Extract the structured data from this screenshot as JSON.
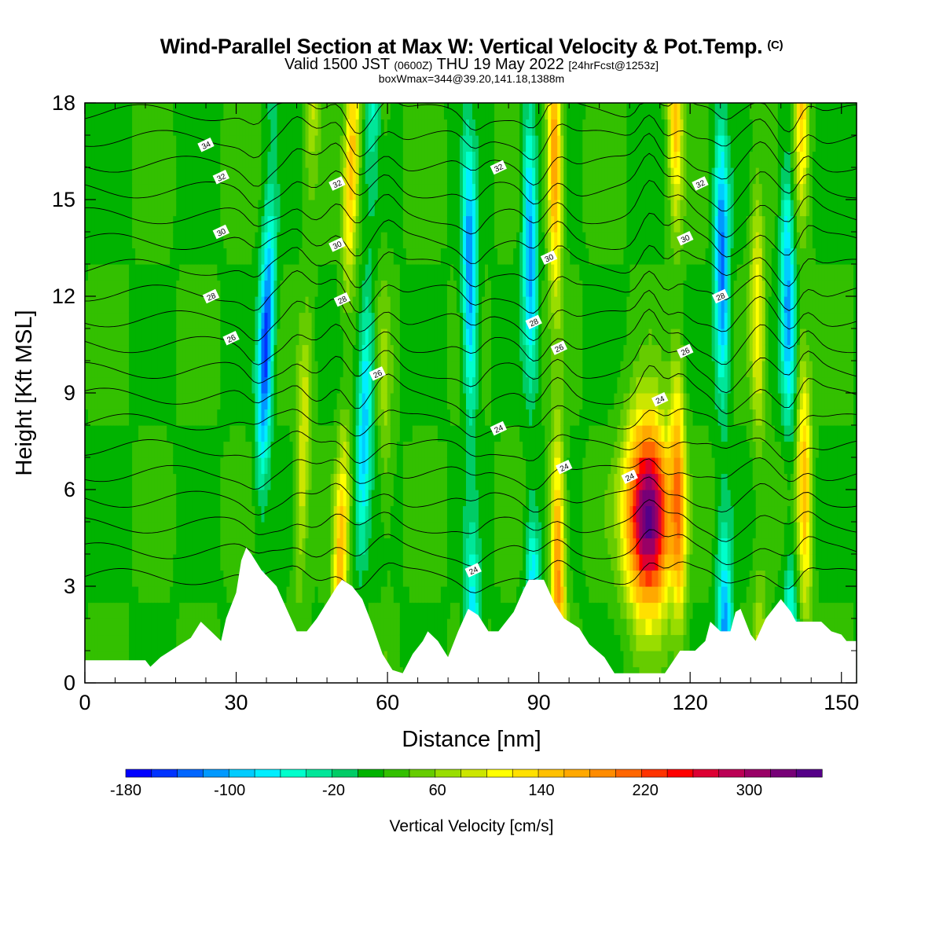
{
  "header": {
    "title": "Wind-Parallel Section at Max W: Vertical Velocity & Pot.Temp.",
    "title_suffix": "(C)",
    "valid_prefix": "Valid 1500 JST",
    "valid_utc": "(0600Z)",
    "valid_date": "THU 19 May 2022",
    "valid_fcst": "[24hrFcst@1253z]",
    "box_info": "boxWmax=344@39.20,141.18,1388m"
  },
  "colorbar": {
    "label": "Vertical Velocity [cm/s]",
    "colors": [
      "#0000ff",
      "#0033ff",
      "#0066ff",
      "#0099ff",
      "#00ccff",
      "#00eeff",
      "#00ffcc",
      "#00e699",
      "#00cc66",
      "#00b300",
      "#33c000",
      "#66cc00",
      "#99dd00",
      "#cce600",
      "#ffff00",
      "#ffe000",
      "#ffc000",
      "#ffa800",
      "#ff8c00",
      "#ff6600",
      "#ff3300",
      "#ff0000",
      "#dd0033",
      "#bb0055",
      "#990066",
      "#770077",
      "#550088"
    ]
  },
  "chart_data": {
    "type": "heatmap",
    "xlabel": "Distance [nm]",
    "ylabel": "Height [Kft MSL]",
    "xlim": [
      0,
      153
    ],
    "ylim": [
      0,
      18
    ],
    "xticks": [
      "0",
      "30",
      "60",
      "90",
      "120",
      "150"
    ],
    "yticks": [
      "0",
      "3",
      "6",
      "9",
      "12",
      "15",
      "18"
    ],
    "colorbar_ticks": [
      "-180",
      "-100",
      "-20",
      "60",
      "140",
      "220",
      "300"
    ],
    "colorbar_range": [
      -180,
      356
    ],
    "variable": "Vertical Velocity [cm/s]",
    "max_value": 344,
    "updraft_columns": [
      {
        "x": 34,
        "w": -170
      },
      {
        "x": 42,
        "w": 80
      },
      {
        "x": 50,
        "w": 130
      },
      {
        "x": 54,
        "w": -110
      },
      {
        "x": 60,
        "w": 40
      },
      {
        "x": 77,
        "w": -140
      },
      {
        "x": 89,
        "w": -130
      },
      {
        "x": 94,
        "w": 170
      },
      {
        "x": 112,
        "w": 344
      },
      {
        "x": 118,
        "w": 140
      },
      {
        "x": 127,
        "w": -150
      },
      {
        "x": 134,
        "w": 90
      },
      {
        "x": 140,
        "w": -120
      },
      {
        "x": 143,
        "w": 130
      }
    ],
    "terrain_height_kft": [
      [
        0,
        0.7
      ],
      [
        12,
        0.7
      ],
      [
        13,
        0.5
      ],
      [
        15,
        0.8
      ],
      [
        18,
        1.1
      ],
      [
        21,
        1.4
      ],
      [
        23,
        1.9
      ],
      [
        25,
        1.6
      ],
      [
        27,
        1.3
      ],
      [
        28,
        2.0
      ],
      [
        30,
        2.8
      ],
      [
        31,
        3.8
      ],
      [
        32,
        4.2
      ],
      [
        33,
        4.0
      ],
      [
        35,
        3.5
      ],
      [
        38,
        3.0
      ],
      [
        40,
        2.3
      ],
      [
        42,
        1.6
      ],
      [
        44,
        1.6
      ],
      [
        46,
        2.0
      ],
      [
        48,
        2.5
      ],
      [
        50,
        3.0
      ],
      [
        51,
        3.2
      ],
      [
        53,
        3.0
      ],
      [
        55,
        2.6
      ],
      [
        57,
        1.8
      ],
      [
        59,
        0.9
      ],
      [
        61,
        0.4
      ],
      [
        63,
        0.3
      ],
      [
        65,
        0.9
      ],
      [
        67,
        1.3
      ],
      [
        68,
        1.6
      ],
      [
        70,
        1.3
      ],
      [
        72,
        0.8
      ],
      [
        74,
        1.6
      ],
      [
        76,
        2.3
      ],
      [
        78,
        2.1
      ],
      [
        80,
        1.6
      ],
      [
        82,
        1.6
      ],
      [
        85,
        2.2
      ],
      [
        87,
        2.9
      ],
      [
        88,
        3.2
      ],
      [
        91,
        3.2
      ],
      [
        93,
        2.5
      ],
      [
        95,
        2.0
      ],
      [
        98,
        1.7
      ],
      [
        100,
        1.2
      ],
      [
        103,
        0.8
      ],
      [
        105,
        0.3
      ],
      [
        110,
        0.3
      ],
      [
        115,
        0.3
      ],
      [
        118,
        1.0
      ],
      [
        121,
        1.0
      ],
      [
        123,
        1.3
      ],
      [
        124,
        1.9
      ],
      [
        126,
        1.6
      ],
      [
        128,
        1.6
      ],
      [
        129,
        2.2
      ],
      [
        130,
        2.3
      ],
      [
        132,
        1.5
      ],
      [
        133,
        1.3
      ],
      [
        135,
        2.0
      ],
      [
        137,
        2.4
      ],
      [
        138,
        2.6
      ],
      [
        140,
        2.2
      ],
      [
        141,
        1.9
      ],
      [
        146,
        1.9
      ],
      [
        148,
        1.6
      ],
      [
        150,
        1.5
      ],
      [
        151,
        1.3
      ],
      [
        153,
        1.3
      ]
    ],
    "isentrope_labels": [
      {
        "value": "34",
        "x": 24,
        "y": 16.7
      },
      {
        "value": "32",
        "x": 27,
        "y": 15.7
      },
      {
        "value": "30",
        "x": 27,
        "y": 14.0
      },
      {
        "value": "28",
        "x": 25,
        "y": 12.0
      },
      {
        "value": "26",
        "x": 29,
        "y": 10.7
      },
      {
        "value": "32",
        "x": 50,
        "y": 15.5
      },
      {
        "value": "30",
        "x": 50,
        "y": 13.6
      },
      {
        "value": "28",
        "x": 51,
        "y": 11.9
      },
      {
        "value": "26",
        "x": 58,
        "y": 9.6
      },
      {
        "value": "32",
        "x": 82,
        "y": 16.0
      },
      {
        "value": "30",
        "x": 92,
        "y": 13.2
      },
      {
        "value": "28",
        "x": 89,
        "y": 11.2
      },
      {
        "value": "26",
        "x": 94,
        "y": 10.4
      },
      {
        "value": "24",
        "x": 82,
        "y": 7.9
      },
      {
        "value": "24",
        "x": 95,
        "y": 6.7
      },
      {
        "value": "24",
        "x": 77,
        "y": 3.5
      },
      {
        "value": "24",
        "x": 108,
        "y": 6.4
      },
      {
        "value": "24",
        "x": 114,
        "y": 8.8
      },
      {
        "value": "26",
        "x": 119,
        "y": 10.3
      },
      {
        "value": "28",
        "x": 126,
        "y": 12.0
      },
      {
        "value": "30",
        "x": 119,
        "y": 13.8
      },
      {
        "value": "32",
        "x": 122,
        "y": 15.5
      }
    ]
  }
}
